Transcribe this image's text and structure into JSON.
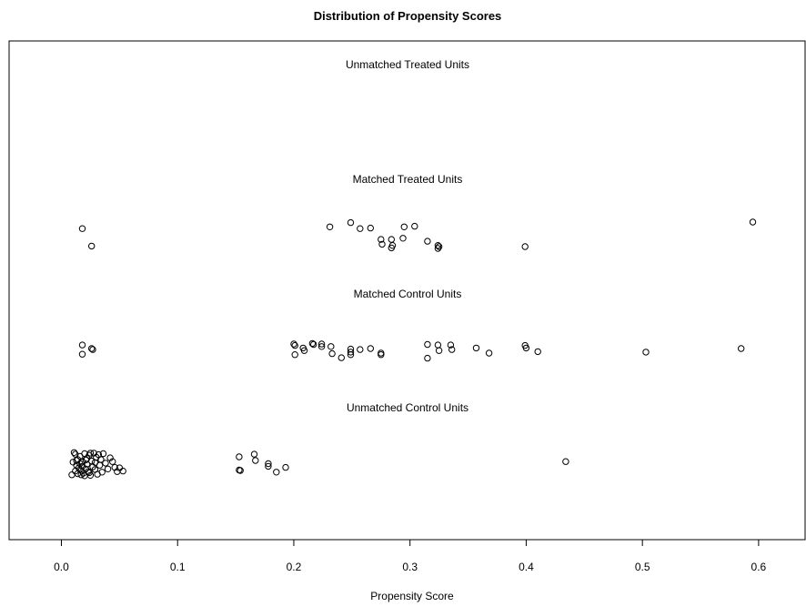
{
  "chart_data": {
    "type": "scatter",
    "title": "Distribution of Propensity Scores",
    "xlabel": "Propensity Score",
    "ylabel": "",
    "xlim": [
      -0.045,
      0.64
    ],
    "xticks": [
      "0.0",
      "0.1",
      "0.2",
      "0.3",
      "0.4",
      "0.5",
      "0.6"
    ],
    "grid": false,
    "marker": "open-circle",
    "series": [
      {
        "name": "Unmatched Treated Units",
        "points": []
      },
      {
        "name": "Matched Treated Units",
        "points": [
          [
            0.018,
            0.72
          ],
          [
            0.026,
            0.14
          ],
          [
            0.231,
            0.78
          ],
          [
            0.249,
            0.92
          ],
          [
            0.257,
            0.72
          ],
          [
            0.266,
            0.74
          ],
          [
            0.275,
            0.36
          ],
          [
            0.276,
            0.2
          ],
          [
            0.284,
            0.36
          ],
          [
            0.284,
            0.08
          ],
          [
            0.285,
            0.16
          ],
          [
            0.294,
            0.4
          ],
          [
            0.295,
            0.78
          ],
          [
            0.304,
            0.8
          ],
          [
            0.315,
            0.3
          ],
          [
            0.324,
            0.16
          ],
          [
            0.325,
            0.12
          ],
          [
            0.324,
            0.06
          ],
          [
            0.399,
            0.12
          ],
          [
            0.595,
            0.94
          ]
        ]
      },
      {
        "name": "Matched Control Units",
        "points": [
          [
            0.018,
            0.64
          ],
          [
            0.018,
            0.28
          ],
          [
            0.026,
            0.5
          ],
          [
            0.027,
            0.46
          ],
          [
            0.2,
            0.68
          ],
          [
            0.201,
            0.62
          ],
          [
            0.201,
            0.26
          ],
          [
            0.208,
            0.52
          ],
          [
            0.209,
            0.42
          ],
          [
            0.216,
            0.7
          ],
          [
            0.217,
            0.66
          ],
          [
            0.224,
            0.68
          ],
          [
            0.224,
            0.58
          ],
          [
            0.232,
            0.58
          ],
          [
            0.233,
            0.3
          ],
          [
            0.241,
            0.14
          ],
          [
            0.249,
            0.48
          ],
          [
            0.249,
            0.36
          ],
          [
            0.249,
            0.26
          ],
          [
            0.257,
            0.46
          ],
          [
            0.266,
            0.5
          ],
          [
            0.275,
            0.32
          ],
          [
            0.275,
            0.26
          ],
          [
            0.315,
            0.66
          ],
          [
            0.315,
            0.12
          ],
          [
            0.324,
            0.64
          ],
          [
            0.325,
            0.42
          ],
          [
            0.335,
            0.64
          ],
          [
            0.336,
            0.46
          ],
          [
            0.357,
            0.52
          ],
          [
            0.368,
            0.32
          ],
          [
            0.399,
            0.62
          ],
          [
            0.4,
            0.52
          ],
          [
            0.41,
            0.38
          ],
          [
            0.503,
            0.36
          ],
          [
            0.585,
            0.5
          ]
        ]
      },
      {
        "name": "Unmatched Control Units",
        "points": [
          [
            0.012,
            0.86
          ],
          [
            0.014,
            0.66
          ],
          [
            0.016,
            0.78
          ],
          [
            0.018,
            0.56
          ],
          [
            0.02,
            0.88
          ],
          [
            0.022,
            0.7
          ],
          [
            0.024,
            0.82
          ],
          [
            0.026,
            0.6
          ],
          [
            0.028,
            0.9
          ],
          [
            0.03,
            0.74
          ],
          [
            0.013,
            0.44
          ],
          [
            0.015,
            0.34
          ],
          [
            0.017,
            0.24
          ],
          [
            0.019,
            0.14
          ],
          [
            0.021,
            0.3
          ],
          [
            0.023,
            0.2
          ],
          [
            0.025,
            0.06
          ],
          [
            0.027,
            0.38
          ],
          [
            0.029,
            0.28
          ],
          [
            0.031,
            0.1
          ],
          [
            0.01,
            0.56
          ],
          [
            0.012,
            0.22
          ],
          [
            0.014,
            0.12
          ],
          [
            0.016,
            0.5
          ],
          [
            0.018,
            0.4
          ],
          [
            0.02,
            0.04
          ],
          [
            0.022,
            0.48
          ],
          [
            0.024,
            0.16
          ],
          [
            0.032,
            0.84
          ],
          [
            0.034,
            0.66
          ],
          [
            0.036,
            0.88
          ],
          [
            0.038,
            0.52
          ],
          [
            0.04,
            0.3
          ],
          [
            0.042,
            0.72
          ],
          [
            0.044,
            0.58
          ],
          [
            0.046,
            0.36
          ],
          [
            0.033,
            0.44
          ],
          [
            0.035,
            0.18
          ],
          [
            0.048,
            0.2
          ],
          [
            0.05,
            0.34
          ],
          [
            0.053,
            0.22
          ],
          [
            0.009,
            0.08
          ],
          [
            0.011,
            0.92
          ],
          [
            0.013,
            0.62
          ],
          [
            0.017,
            0.08
          ],
          [
            0.021,
            0.64
          ],
          [
            0.025,
            0.9
          ],
          [
            0.029,
            0.54
          ],
          [
            0.153,
            0.76
          ],
          [
            0.153,
            0.26
          ],
          [
            0.154,
            0.24
          ],
          [
            0.166,
            0.86
          ],
          [
            0.167,
            0.62
          ],
          [
            0.178,
            0.5
          ],
          [
            0.178,
            0.4
          ],
          [
            0.185,
            0.18
          ],
          [
            0.193,
            0.36
          ],
          [
            0.434,
            0.58
          ]
        ]
      }
    ]
  }
}
